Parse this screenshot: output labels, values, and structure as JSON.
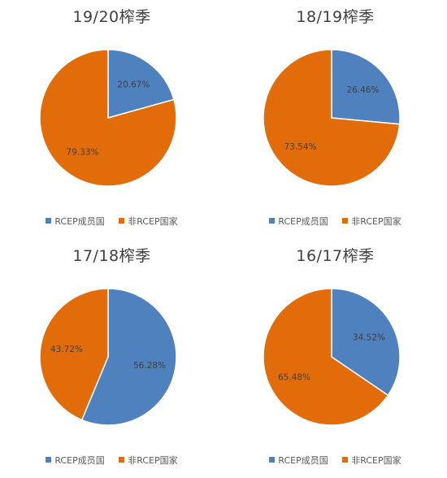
{
  "colors": {
    "rcep": "#4E81BD",
    "non_rcep": "#E36C0A"
  },
  "chart_data": [
    {
      "type": "pie",
      "title": "19/20榨季",
      "slices": [
        {
          "label": "RCEP成员国",
          "value": 20.67,
          "text": "20.67%",
          "color": "#4E81BD"
        },
        {
          "label": "非RCEP国家",
          "value": 79.33,
          "text": "79.33%",
          "color": "#E36C0A"
        }
      ],
      "legend": [
        "RCEP成员国",
        "非RCEP国家"
      ],
      "legend_position": "bottom"
    },
    {
      "type": "pie",
      "title": "18/19榨季",
      "slices": [
        {
          "label": "RCEP成员国",
          "value": 26.46,
          "text": "26.46%",
          "color": "#4E81BD"
        },
        {
          "label": "非RCEP国家",
          "value": 73.54,
          "text": "73.54%",
          "color": "#E36C0A"
        }
      ],
      "legend": [
        "RCEP成员国",
        "非RCEP国家"
      ],
      "legend_position": "bottom"
    },
    {
      "type": "pie",
      "title": "17/18榨季",
      "slices": [
        {
          "label": "RCEP成员国",
          "value": 56.28,
          "text": "56.28%",
          "color": "#4E81BD"
        },
        {
          "label": "非RCEP国家",
          "value": 43.72,
          "text": "43.72%",
          "color": "#E36C0A"
        }
      ],
      "legend": [
        "RCEP成员国",
        "非RCEP国家"
      ],
      "legend_position": "bottom"
    },
    {
      "type": "pie",
      "title": "16/17榨季",
      "slices": [
        {
          "label": "RCEP成员国",
          "value": 34.52,
          "text": "34.52%",
          "color": "#4E81BD"
        },
        {
          "label": "非RCEP国家",
          "value": 65.48,
          "text": "65.48%",
          "color": "#E36C0A"
        }
      ],
      "legend": [
        "RCEP成员国",
        "非RCEP国家"
      ],
      "legend_position": "bottom"
    }
  ]
}
